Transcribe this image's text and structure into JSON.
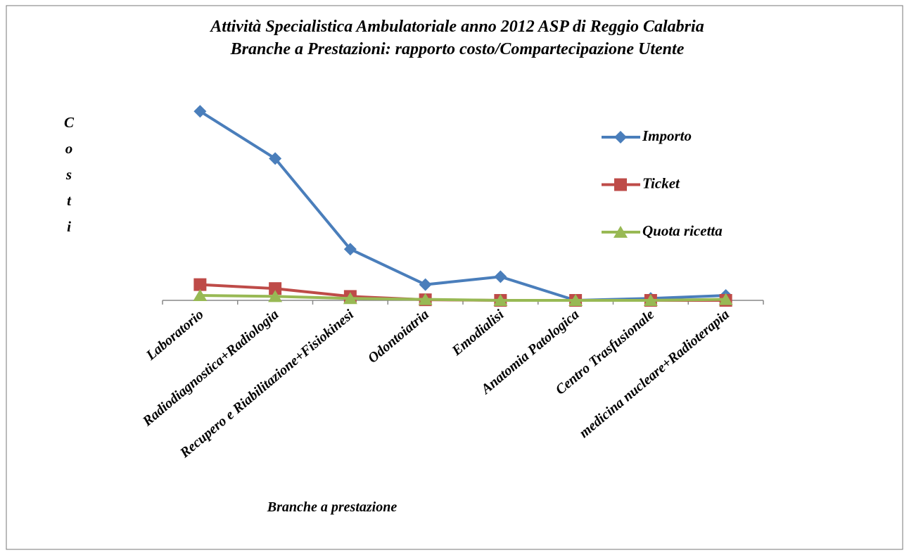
{
  "chart_data": {
    "type": "line",
    "title": "Attività Specialistica Ambulatoriale anno 2012 ASP di Reggio Calabria",
    "subtitle": "Branche a Prestazioni: rapporto costo/Compartecipazione Utente",
    "x_label": "Branche a prestazione",
    "y_label": "Costi",
    "categories": [
      "Laboratorio",
      "Radiodiagnostica+Radiologia",
      "Recupero e Riabilitazione+Fisiokinesi",
      "Odontoiatria",
      "Emodialisi",
      "Anatomia Patologica",
      "Centro Trasfusionale",
      "medicina nucleare+Radioterapia"
    ],
    "ylim": [
      0,
      100
    ],
    "series": [
      {
        "name": "Importo",
        "color": "#4a7ebb",
        "marker": "diamond",
        "values": [
          96,
          72,
          26,
          8,
          12,
          0,
          1,
          2.5
        ]
      },
      {
        "name": "Ticket",
        "color": "#be4b48",
        "marker": "square",
        "values": [
          8,
          6,
          2,
          0.3,
          0,
          0,
          0,
          0
        ]
      },
      {
        "name": "Quota ricetta",
        "color": "#98b954",
        "marker": "triangle",
        "values": [
          2.5,
          2,
          1,
          0.5,
          0,
          0,
          0,
          0.5
        ]
      }
    ],
    "legend": "right"
  }
}
